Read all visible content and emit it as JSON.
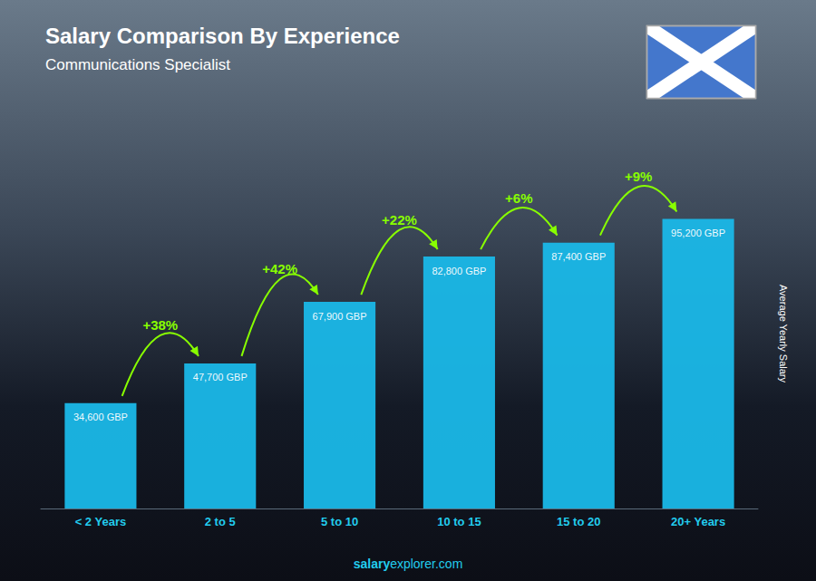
{
  "chart_data": {
    "type": "bar",
    "title": "Salary Comparison By Experience",
    "subtitle": "Communications Specialist",
    "categories": [
      "< 2 Years",
      "2 to 5",
      "5 to 10",
      "10 to 15",
      "15 to 20",
      "20+ Years"
    ],
    "values": [
      34600,
      47700,
      67900,
      82800,
      87400,
      95200
    ],
    "value_labels": [
      "34,600 GBP",
      "47,700 GBP",
      "67,900 GBP",
      "82,800 GBP",
      "87,400 GBP",
      "95,200 GBP"
    ],
    "data_labels": true,
    "annotations": [
      "+38%",
      "+42%",
      "+22%",
      "+6%",
      "+9%"
    ],
    "y_label": "Average Yearly Salary",
    "footer": [
      "salary",
      "explorer.com"
    ],
    "color": "#1ab8e8",
    "ylim": [
      0,
      115000
    ],
    "tick_labels": "x",
    "grid": false
  }
}
